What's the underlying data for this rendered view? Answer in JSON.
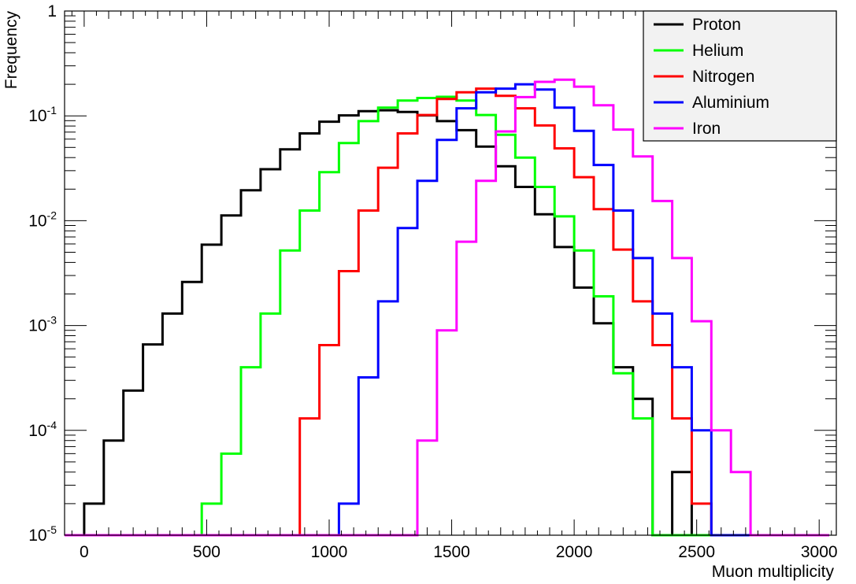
{
  "chart_data": {
    "type": "line",
    "style": "step-histogram",
    "xlabel": "Muon multiplicity",
    "ylabel": "Frequency",
    "xlim": [
      -80,
      3070
    ],
    "ylim": [
      1e-05,
      1
    ],
    "yscale": "log",
    "xticks": [
      0,
      500,
      1000,
      1500,
      2000,
      2500,
      3000
    ],
    "yticks": [
      {
        "value": 1,
        "base": "1",
        "exp": ""
      },
      {
        "value": 0.1,
        "base": "10",
        "exp": "-1"
      },
      {
        "value": 0.01,
        "base": "10",
        "exp": "-2"
      },
      {
        "value": 0.001,
        "base": "10",
        "exp": "-3"
      },
      {
        "value": 0.0001,
        "base": "10",
        "exp": "-4"
      },
      {
        "value": 1e-05,
        "base": "10",
        "exp": "-5"
      }
    ],
    "grid": false,
    "legend_position": "top-right",
    "bin_width": 80,
    "bin_starts": [
      -80,
      0,
      80,
      160,
      240,
      320,
      400,
      480,
      560,
      640,
      720,
      800,
      880,
      960,
      1040,
      1120,
      1200,
      1280,
      1360,
      1440,
      1520,
      1600,
      1680,
      1760,
      1840,
      1920,
      2000,
      2080,
      2160,
      2240,
      2320,
      2400,
      2480,
      2560,
      2640,
      2720,
      2800,
      2880,
      2960
    ],
    "series": [
      {
        "name": "Proton",
        "color": "#000000",
        "values": [
          1e-05,
          2e-05,
          8e-05,
          0.00024,
          0.00066,
          0.0013,
          0.0026,
          0.0059,
          0.0112,
          0.0195,
          0.031,
          0.048,
          0.068,
          0.088,
          0.101,
          0.111,
          0.113,
          0.109,
          0.101,
          0.089,
          0.073,
          0.051,
          0.033,
          0.021,
          0.0115,
          0.0056,
          0.0023,
          0.00105,
          0.0004,
          0.0002,
          1e-05,
          4e-05,
          1e-05,
          1e-05,
          1e-05,
          1e-05,
          1e-05,
          1e-05,
          1e-05
        ]
      },
      {
        "name": "Helium",
        "color": "#00ff00",
        "values": [
          1e-05,
          1e-05,
          1e-05,
          1e-05,
          1e-05,
          1e-05,
          1e-05,
          2e-05,
          6e-05,
          0.0004,
          0.0013,
          0.0052,
          0.0125,
          0.029,
          0.055,
          0.089,
          0.12,
          0.14,
          0.148,
          0.152,
          0.14,
          0.102,
          0.066,
          0.04,
          0.021,
          0.011,
          0.0052,
          0.0019,
          0.00035,
          0.00013,
          1e-05,
          1e-05,
          1e-05,
          1e-05,
          1e-05,
          1e-05,
          1e-05,
          1e-05,
          1e-05
        ]
      },
      {
        "name": "Nitrogen",
        "color": "#ff0000",
        "values": [
          1e-05,
          1e-05,
          1e-05,
          1e-05,
          1e-05,
          1e-05,
          1e-05,
          1e-05,
          1e-05,
          1e-05,
          1e-05,
          1e-05,
          0.00013,
          0.00065,
          0.0033,
          0.0125,
          0.032,
          0.068,
          0.102,
          0.145,
          0.168,
          0.182,
          0.155,
          0.118,
          0.081,
          0.049,
          0.026,
          0.0129,
          0.0053,
          0.0017,
          0.00065,
          0.00013,
          2e-05,
          1e-05,
          1e-05,
          1e-05,
          1e-05,
          1e-05,
          1e-05
        ]
      },
      {
        "name": "Aluminium",
        "color": "#0000ff",
        "values": [
          1e-05,
          1e-05,
          1e-05,
          1e-05,
          1e-05,
          1e-05,
          1e-05,
          1e-05,
          1e-05,
          1e-05,
          1e-05,
          1e-05,
          1e-05,
          1e-05,
          2e-05,
          0.00032,
          0.0017,
          0.0085,
          0.024,
          0.059,
          0.118,
          0.168,
          0.182,
          0.2,
          0.178,
          0.12,
          0.072,
          0.034,
          0.0125,
          0.0044,
          0.0013,
          0.0004,
          0.0001,
          1e-05,
          1e-05,
          1e-05,
          1e-05,
          1e-05,
          1e-05
        ]
      },
      {
        "name": "Iron",
        "color": "#ff00ff",
        "values": [
          1e-05,
          1e-05,
          1e-05,
          1e-05,
          1e-05,
          1e-05,
          1e-05,
          1e-05,
          1e-05,
          1e-05,
          1e-05,
          1e-05,
          1e-05,
          1e-05,
          1e-05,
          1e-05,
          1e-05,
          1e-05,
          8e-05,
          0.0009,
          0.0063,
          0.024,
          0.071,
          0.151,
          0.211,
          0.221,
          0.19,
          0.126,
          0.074,
          0.041,
          0.0154,
          0.0044,
          0.0011,
          0.0001,
          4e-05,
          1e-05,
          1e-05,
          1e-05,
          1e-05
        ]
      }
    ]
  }
}
